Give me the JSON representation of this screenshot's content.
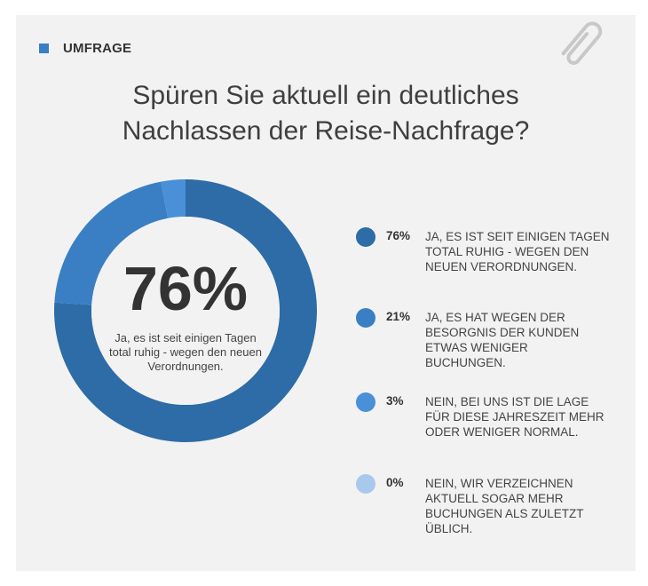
{
  "header": {
    "label": "UMFRAGE",
    "accent": "#3a7fc4",
    "icon": "paperclip-icon"
  },
  "title_line1": "Spüren Sie aktuell ein deutliches",
  "title_line2": "Nachlassen der Reise-Nachfrage?",
  "center": {
    "value": "76%",
    "caption": "Ja, es ist seit einigen Tagen total ruhig - wegen den neuen Verordnungen."
  },
  "chart_data": {
    "type": "pie",
    "variant": "donut",
    "title": "Spüren Sie aktuell ein deutliches Nachlassen der Reise-Nachfrage?",
    "categories": [
      "JA, ES IST SEIT EINIGEN TAGEN TOTAL RUHIG - WEGEN DEN NEUEN VERORDNUNGEN.",
      "JA, ES HAT WEGEN DER BESORGNIS DER KUNDEN ETWAS WENIGER BUCHUNGEN.",
      "NEIN, BEI UNS IST DIE LAGE FÜR DIESE JAHRESZEIT MEHR ODER WENIGER NORMAL.",
      "NEIN, WIR VERZEICHNEN AKTUELL SOGAR MEHR BUCHUNGEN ALS ZULETZT ÜBLICH."
    ],
    "values": [
      76,
      21,
      3,
      0
    ],
    "labels": [
      "76%",
      "21%",
      "3%",
      "0%"
    ],
    "colors": [
      "#2d6ca6",
      "#3a7fc4",
      "#4a90d9",
      "#a9c9ec"
    ],
    "legend_position": "right"
  }
}
